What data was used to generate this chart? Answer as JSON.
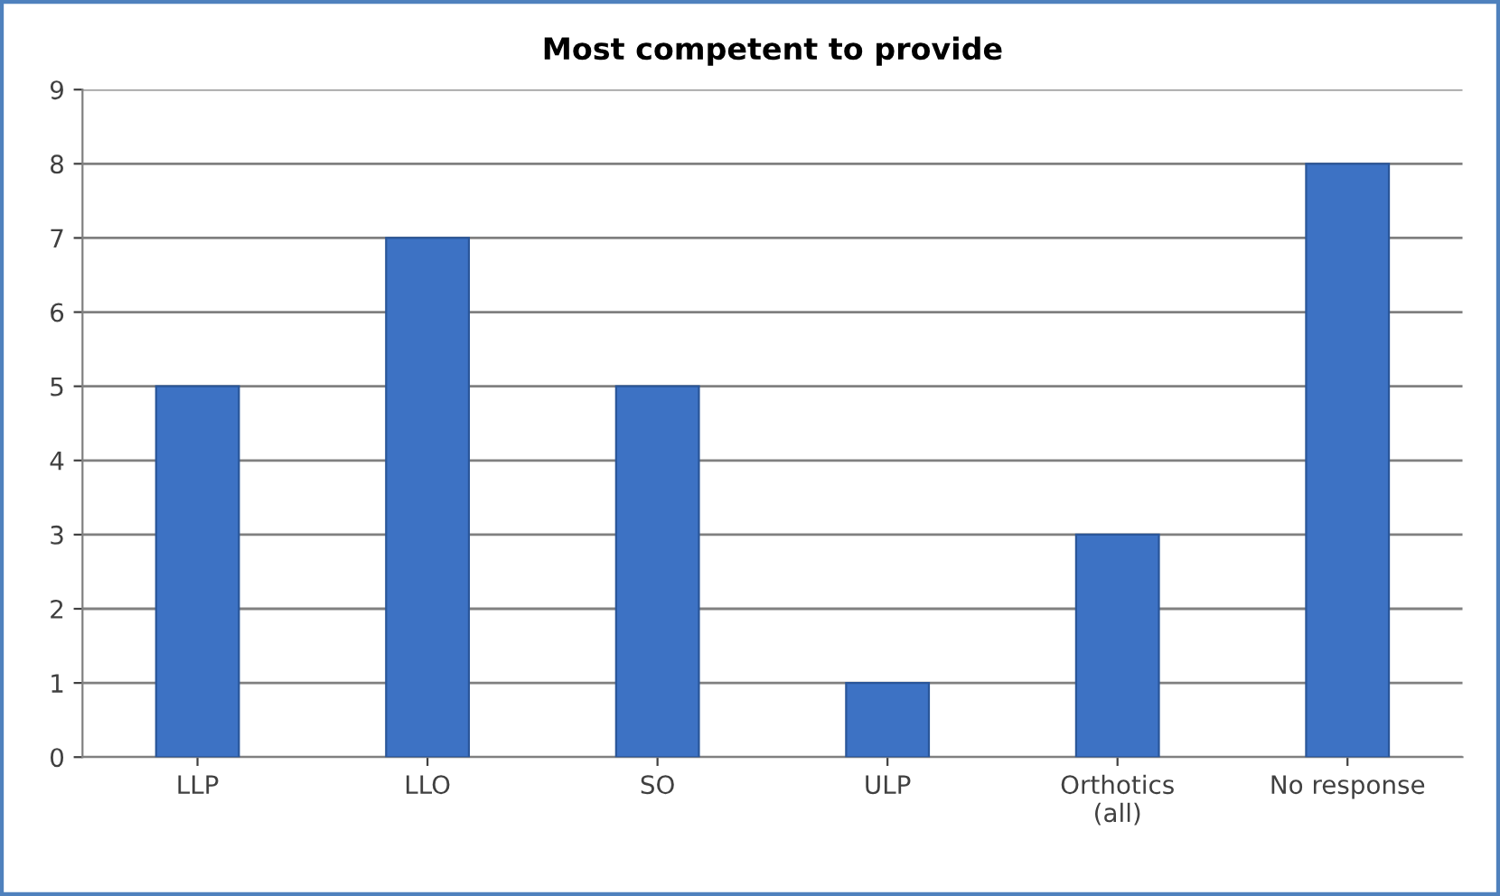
{
  "chart_data": {
    "type": "bar",
    "title": "Most competent to provide",
    "categories": [
      "LLP",
      "LLO",
      "SO",
      "ULP",
      "Orthotics\n(all)",
      "No response"
    ],
    "values": [
      5,
      7,
      5,
      1,
      3,
      8
    ],
    "color": "#3d72c4",
    "ylim": [
      0,
      9
    ],
    "yticks": [
      0,
      1,
      2,
      3,
      4,
      5,
      6,
      7,
      8,
      9
    ],
    "grid": "y"
  }
}
